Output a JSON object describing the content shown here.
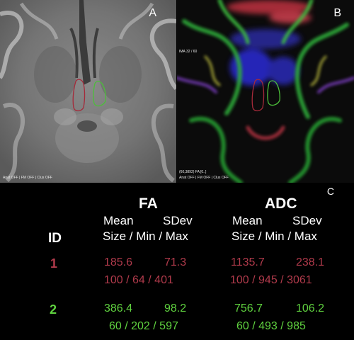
{
  "panels": {
    "a": {
      "letter": "A",
      "overlay_text": "Anat OFF | FM OFF | Clus OFF"
    },
    "b": {
      "letter": "B",
      "ima_text": "IMA 32 / 60",
      "info_text": "(60,3892) FA [0..]",
      "overlay_text": "Anat OFF | FM OFF | Clus OFF"
    },
    "c": {
      "letter": "C"
    }
  },
  "roi_colors": {
    "roi1": "#a52a3a",
    "roi2": "#4cbf3a"
  },
  "table": {
    "fa": {
      "header": "FA",
      "mean_label": "Mean",
      "sdev_label": "SDev",
      "size_label": "Size / Min / Max"
    },
    "adc": {
      "header": "ADC",
      "mean_label": "Mean",
      "sdev_label": "SDev",
      "size_label": "Size / Min / Max"
    },
    "id_header": "ID",
    "rows": [
      {
        "id": "1",
        "color": "#b03a4b",
        "fa_mean": "185.6",
        "fa_sdev": "71.3",
        "fa_size": "100 / 64 / 401",
        "adc_mean": "1135.7",
        "adc_sdev": "238.1",
        "adc_size": "100 / 945 / 3061"
      },
      {
        "id": "2",
        "color": "#5fd13f",
        "fa_mean": "386.4",
        "fa_sdev": "98.2",
        "fa_size": "60 / 202 / 597",
        "adc_mean": "756.7",
        "adc_sdev": "106.2",
        "adc_size": "60 / 493 / 985"
      }
    ]
  }
}
